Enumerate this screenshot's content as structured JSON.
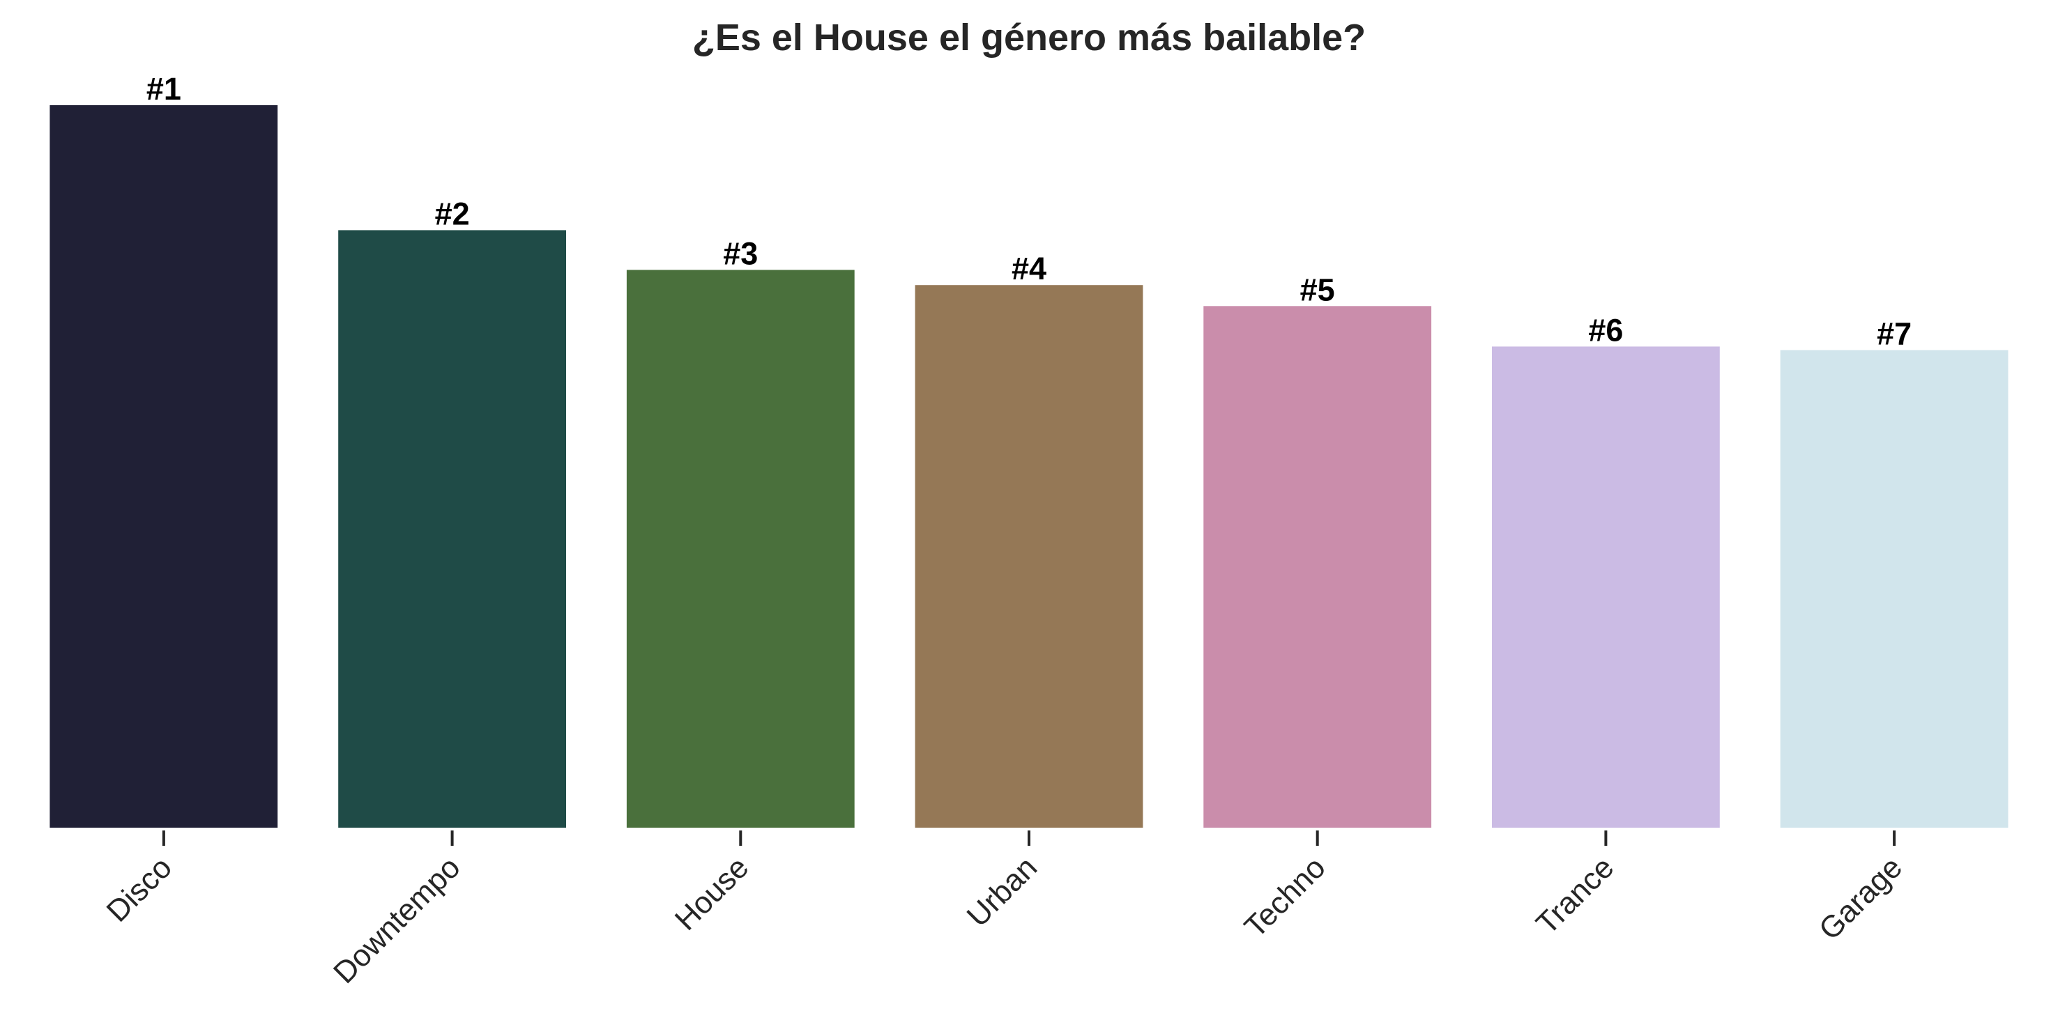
{
  "chart_data": {
    "type": "bar",
    "title": "¿Es el House el género más bailable?",
    "xlabel": "",
    "ylabel": "",
    "categories": [
      "Disco",
      "Downtempo",
      "House",
      "Urban",
      "Techno",
      "Trance",
      "Garage"
    ],
    "values": [
      1.0,
      0.827,
      0.772,
      0.751,
      0.722,
      0.666,
      0.661
    ],
    "data_labels": [
      "#1",
      "#2",
      "#3",
      "#4",
      "#5",
      "#6",
      "#7"
    ],
    "colors": [
      "#202036",
      "#1f4b47",
      "#4a703c",
      "#957856",
      "#ca8dab",
      "#cbbbe4",
      "#d1e5ec"
    ],
    "ylim": [
      0,
      1.0
    ],
    "grid": false,
    "legend": "none",
    "y_axis_visible": false,
    "tick_label_rotation": -45
  }
}
